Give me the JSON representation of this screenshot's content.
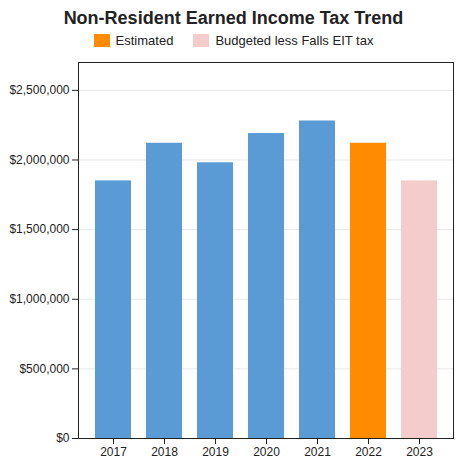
{
  "chart_data": {
    "type": "bar",
    "title": "Non-Resident Earned Income Tax Trend",
    "categories": [
      "2017",
      "2018",
      "2019",
      "2020",
      "2021",
      "2022",
      "2023"
    ],
    "values": [
      1850000,
      2120000,
      1980000,
      2190000,
      2280000,
      2120000,
      1850000
    ],
    "colors": [
      "#5B9BD5",
      "#5B9BD5",
      "#5B9BD5",
      "#5B9BD5",
      "#5B9BD5",
      "#FF8C00",
      "#F4CCCC"
    ],
    "legend_items": [
      {
        "label": "Estimated",
        "color": "#FF8C00"
      },
      {
        "label": "Budgeted less Falls EIT tax",
        "color": "#F4CCCC"
      }
    ],
    "ylim": [
      0,
      2700000
    ],
    "yticks": [
      {
        "value": 0,
        "label": "$0"
      },
      {
        "value": 500000,
        "label": "$500,000"
      },
      {
        "value": 1000000,
        "label": "$1,000,000"
      },
      {
        "value": 1500000,
        "label": "$1,500,000"
      },
      {
        "value": 2000000,
        "label": "$2,000,000"
      },
      {
        "value": 2500000,
        "label": "$2,500,000"
      }
    ],
    "grid": true
  }
}
